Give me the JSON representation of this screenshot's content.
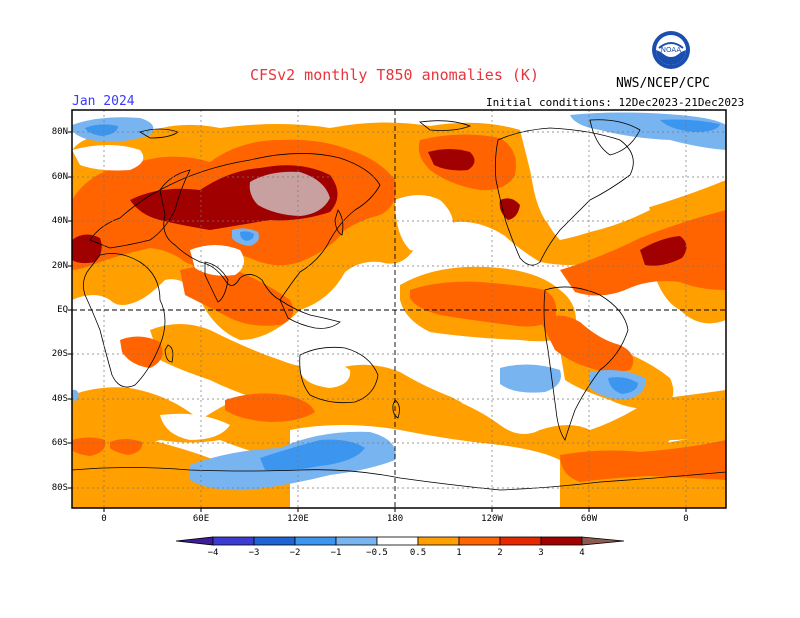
{
  "header": {
    "title": "CFSv2 monthly T850 anomalies (K)",
    "agency": "NWS/NCEP/CPC",
    "valid_month": "Jan 2024",
    "initial_conditions": "Initial conditions: 12Dec2023-21Dec2023",
    "logo_text": "NOAA"
  },
  "map": {
    "lat_labels": [
      "80N",
      "60N",
      "40N",
      "20N",
      "EQ",
      "20S",
      "40S",
      "60S",
      "80S"
    ],
    "lon_labels": [
      "0",
      "60E",
      "120E",
      "180",
      "120W",
      "60W",
      "0"
    ]
  },
  "legend": {
    "labels": [
      "−4",
      "−3",
      "−2",
      "−1",
      "−0.5",
      "0.5",
      "1",
      "2",
      "3",
      "4"
    ],
    "colors": {
      "lt_-4": "#3c1e96",
      "-4_-3": "#3c3cd2",
      "-3_-2": "#1e64d2",
      "-2_-1": "#3c96f0",
      "-1_-0.5": "#78b4f0",
      "-0.5_0.5": "#ffffff",
      "0.5_1": "#ffa000",
      "1_2": "#ff6400",
      "2_3": "#e62800",
      "3_4": "#a00000",
      "4_5": "#c8a0a0",
      "gt_5": "#8c5a50"
    }
  },
  "colors": {
    "title": "#e8343c",
    "month": "#3a3aff"
  }
}
